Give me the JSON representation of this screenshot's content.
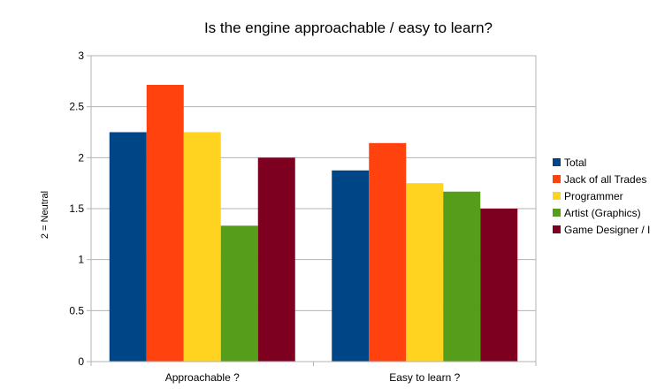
{
  "chart_data": {
    "type": "bar",
    "title": "Is the engine approachable / easy to learn?",
    "ylabel": "2 = Neutral",
    "xlabel": "",
    "categories": [
      "Approachable ?",
      "Easy to learn ?"
    ],
    "ylim": [
      0,
      3
    ],
    "yticks": [
      "0",
      "0.5",
      "1",
      "1.5",
      "2",
      "2.5",
      "3"
    ],
    "grid": true,
    "legend_position": "right",
    "series": [
      {
        "name": "Total",
        "color": "#004586",
        "values": [
          2.25,
          1.875
        ]
      },
      {
        "name": "Jack of all Trades",
        "color": "#ff420e",
        "values": [
          2.714,
          2.143
        ]
      },
      {
        "name": "Programmer",
        "color": "#ffd320",
        "values": [
          2.25,
          1.75
        ]
      },
      {
        "name": "Artist (Graphics)",
        "color": "#579d1c",
        "values": [
          1.333,
          1.667
        ]
      },
      {
        "name": "Game Designer / I",
        "color": "#7e0021",
        "values": [
          2.0,
          1.5
        ]
      }
    ]
  }
}
